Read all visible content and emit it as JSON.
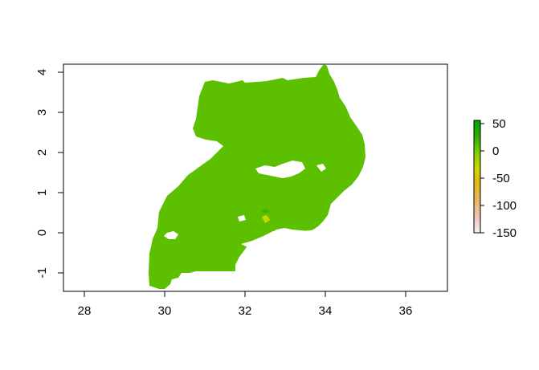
{
  "map": {
    "x_axis": {
      "ticks": [
        28,
        30,
        32,
        34,
        36
      ],
      "range": [
        27.5,
        37.1
      ]
    },
    "y_axis": {
      "ticks": [
        -1,
        0,
        1,
        2,
        3,
        4
      ],
      "range": [
        -1.45,
        4.25
      ]
    },
    "fill_color": "#5cc000",
    "water_color": "#ffffff"
  },
  "legend": {
    "ticks": [
      50,
      0,
      -50,
      -100,
      -150
    ],
    "range": [
      -158,
      62
    ],
    "colors": [
      "#f2f2f2",
      "#f0c9c0",
      "#ebb25e",
      "#e2b811",
      "#c8d800",
      "#72d100",
      "#2fae00",
      "#00a600"
    ]
  }
}
